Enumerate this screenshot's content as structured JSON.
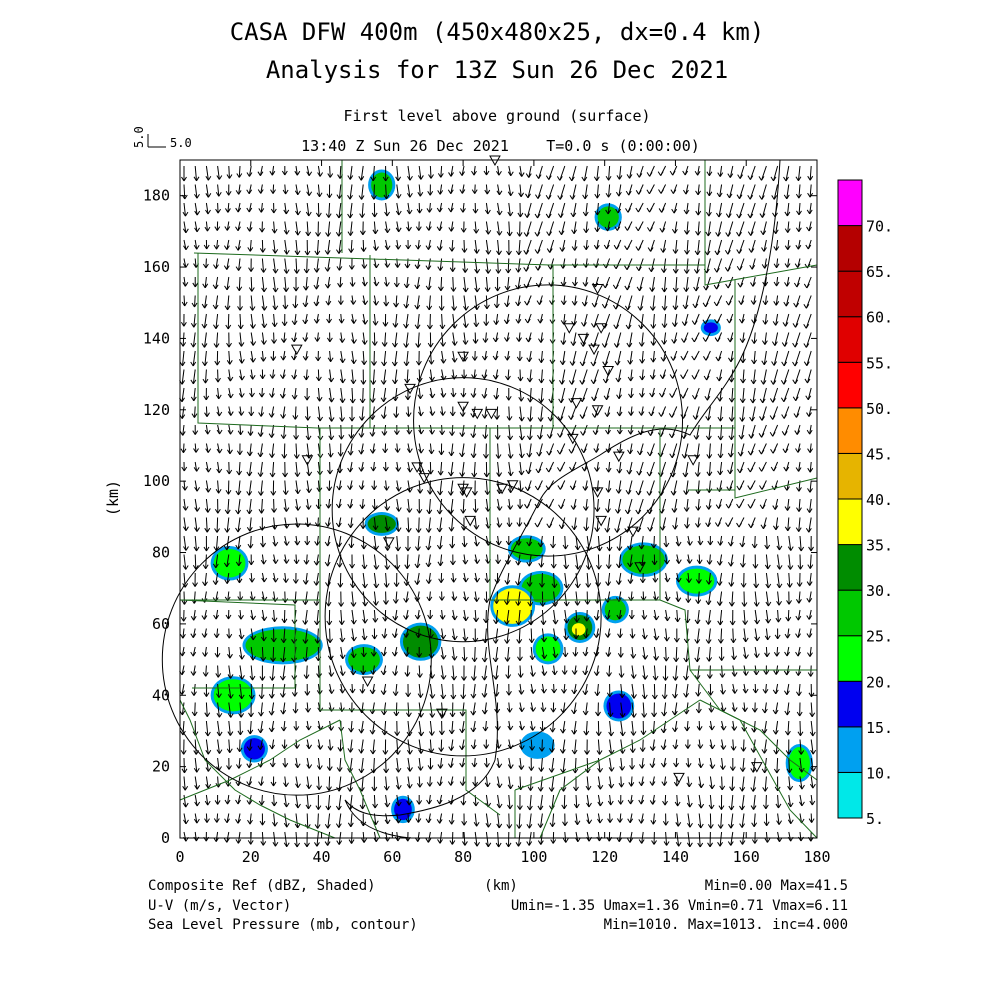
{
  "header": {
    "title_line1": "CASA DFW 400m (450x480x25, dx=0.4 km)",
    "title_line2": "Analysis for 13Z Sun 26 Dec 2021",
    "level": "First level above ground (surface)",
    "valid_time": "13:40 Z Sun 26 Dec 2021",
    "time_step": "T=0.0 s (0:00:00)",
    "ref_vector_label_vert": "5.0",
    "ref_vector_label": "5.0"
  },
  "chart_data": {
    "type": "map",
    "xlabel": "(km)",
    "ylabel": "(km)",
    "xlim": [
      0,
      180
    ],
    "ylim": [
      0,
      190
    ],
    "x_ticks": [
      "0",
      "20",
      "40",
      "60",
      "80",
      "100",
      "120",
      "140",
      "160",
      "180"
    ],
    "y_ticks": [
      "0",
      "20",
      "40",
      "60",
      "80",
      "100",
      "120",
      "140",
      "160",
      "180"
    ],
    "wind_vectors": {
      "u_range": [
        -1.35,
        1.36
      ],
      "v_range": [
        0.71,
        6.11
      ],
      "units": "m/s"
    },
    "colorbar": {
      "labels": [
        "5.",
        "10.",
        "15.",
        "20.",
        "25.",
        "30.",
        "35.",
        "40.",
        "45.",
        "50.",
        "55.",
        "60.",
        "65.",
        "70."
      ],
      "colors": [
        "#00e8e8",
        "#00a0f0",
        "#0000f0",
        "#00ff00",
        "#00c800",
        "#008c00",
        "#ffff00",
        "#e6b400",
        "#ff8c00",
        "#ff0000",
        "#e00000",
        "#c00000",
        "#b40000",
        "#ff00ff"
      ]
    },
    "radar_sites": [
      {
        "center": [
          80,
          62
        ],
        "radius": 39
      },
      {
        "center": [
          80,
          92
        ],
        "radius": 37
      },
      {
        "center": [
          104,
          117
        ],
        "radius": 38
      },
      {
        "center": [
          33,
          50
        ],
        "radius": 38
      }
    ],
    "echoes": [
      {
        "x": 57,
        "y": 183,
        "w": 6,
        "h": 7,
        "dbz": 28
      },
      {
        "x": 121,
        "y": 174,
        "w": 6,
        "h": 6,
        "dbz": 28
      },
      {
        "x": 150,
        "y": 143,
        "w": 4,
        "h": 3,
        "dbz": 15
      },
      {
        "x": 57,
        "y": 88,
        "w": 8,
        "h": 5,
        "dbz": 32
      },
      {
        "x": 98,
        "y": 81,
        "w": 9,
        "h": 6,
        "dbz": 27
      },
      {
        "x": 131,
        "y": 78,
        "w": 12,
        "h": 8,
        "dbz": 28
      },
      {
        "x": 146,
        "y": 72,
        "w": 10,
        "h": 7,
        "dbz": 22
      },
      {
        "x": 14,
        "y": 77,
        "w": 9,
        "h": 8,
        "dbz": 22
      },
      {
        "x": 102,
        "y": 70,
        "w": 11,
        "h": 8,
        "dbz": 28
      },
      {
        "x": 94,
        "y": 65,
        "w": 11,
        "h": 10,
        "dbz": 38
      },
      {
        "x": 113,
        "y": 59,
        "w": 7,
        "h": 7,
        "dbz": 33
      },
      {
        "x": 123,
        "y": 64,
        "w": 6,
        "h": 6,
        "dbz": 28
      },
      {
        "x": 68,
        "y": 55,
        "w": 10,
        "h": 9,
        "dbz": 31
      },
      {
        "x": 104,
        "y": 53,
        "w": 7,
        "h": 7,
        "dbz": 24
      },
      {
        "x": 29,
        "y": 54,
        "w": 21,
        "h": 9,
        "dbz": 26
      },
      {
        "x": 52,
        "y": 50,
        "w": 9,
        "h": 7,
        "dbz": 25
      },
      {
        "x": 15,
        "y": 40,
        "w": 11,
        "h": 9,
        "dbz": 23
      },
      {
        "x": 124,
        "y": 37,
        "w": 7,
        "h": 7,
        "dbz": 17
      },
      {
        "x": 21,
        "y": 25,
        "w": 6,
        "h": 6,
        "dbz": 18
      },
      {
        "x": 101,
        "y": 26,
        "w": 8,
        "h": 6,
        "dbz": 11
      },
      {
        "x": 63,
        "y": 8,
        "w": 5,
        "h": 6,
        "dbz": 16
      },
      {
        "x": 175,
        "y": 21,
        "w": 6,
        "h": 9,
        "dbz": 24
      }
    ],
    "station_markers": [
      [
        89,
        190
      ],
      [
        118,
        154
      ],
      [
        110,
        143
      ],
      [
        114,
        140
      ],
      [
        119,
        143
      ],
      [
        117,
        137
      ],
      [
        121,
        131
      ],
      [
        33,
        137
      ],
      [
        80,
        135
      ],
      [
        65,
        126
      ],
      [
        112,
        122
      ],
      [
        80,
        121
      ],
      [
        84,
        119
      ],
      [
        88,
        119
      ],
      [
        118,
        120
      ],
      [
        111,
        112
      ],
      [
        124,
        107
      ],
      [
        36,
        106
      ],
      [
        67,
        104
      ],
      [
        69,
        101
      ],
      [
        81,
        97
      ],
      [
        80,
        98
      ],
      [
        91,
        98
      ],
      [
        94,
        99
      ],
      [
        118,
        97
      ],
      [
        119,
        89
      ],
      [
        82,
        89
      ],
      [
        59,
        83
      ],
      [
        128,
        86
      ],
      [
        130,
        76
      ],
      [
        53,
        44
      ],
      [
        74,
        35
      ],
      [
        141,
        17
      ],
      [
        163,
        20
      ],
      [
        145,
        106
      ]
    ]
  },
  "footer": {
    "left_line1": "Composite Ref (dBZ, Shaded)",
    "left_line2": "U-V (m/s, Vector)",
    "left_line3": "Sea Level Pressure (mb, contour)",
    "center_label": "(km)",
    "right_line1": "Min=0.00 Max=41.5",
    "right_line2": "Umin=-1.35 Umax=1.36 Vmin=0.71 Vmax=6.11",
    "right_line3": "Min=1010. Max=1013. inc=4.000"
  }
}
